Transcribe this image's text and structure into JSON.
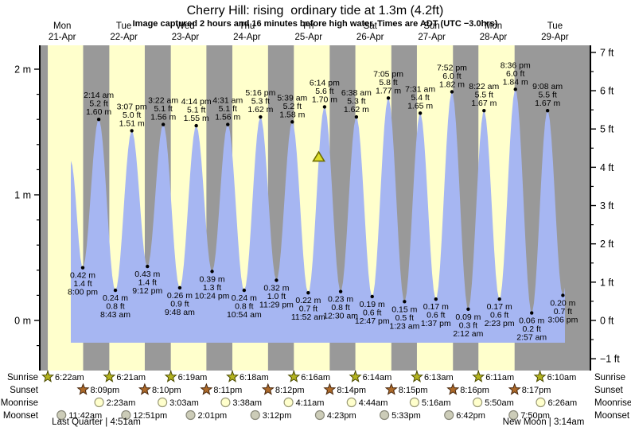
{
  "title": "Cherry Hill: rising  ordinary tide at 1.3m (4.2ft)",
  "subtitle": "Image captured 2 hours and 16 minutes before high water. Times are ADT (UTC −3.0hrs)",
  "colors": {
    "day_band": "#ffffcc",
    "night_band": "#999999",
    "tide_fill": "#a6b6f2",
    "day_label_red": "#e32222",
    "marker_fill": "#dede2a",
    "marker_stroke": "#6e6e00",
    "sunrise_star_fill": "#b3b31f",
    "sunrise_star_stroke": "#4c4c00",
    "sunset_star_fill": "#ad6a2a",
    "sunset_star_stroke": "#47250a",
    "moonrise_fill": "#ffffcc",
    "moonrise_stroke": "#999977",
    "moonset_fill": "#ccccb8",
    "moonset_stroke": "#88887a"
  },
  "chart_data": {
    "type": "area",
    "title": "Cherry Hill: rising  ordinary tide at 1.3m (4.2ft)",
    "subtitle": "Image captured 2 hours and 16 minutes before high water. Times are ADT (UTC −3.0hrs)",
    "days": [
      {
        "name": "Mon",
        "date": "21-Apr"
      },
      {
        "name": "Tue",
        "date": "22-Apr"
      },
      {
        "name": "Wed",
        "date": "23-Apr"
      },
      {
        "name": "Thu",
        "date": "24-Apr"
      },
      {
        "name": "Fri",
        "date": "25-Apr"
      },
      {
        "name": "Sat",
        "date": "26-Apr"
      },
      {
        "name": "Sun",
        "date": "27-Apr"
      },
      {
        "name": "Mon",
        "date": "28-Apr"
      },
      {
        "name": "Tue",
        "date": "29-Apr"
      }
    ],
    "y_left_ticks": [
      {
        "value": 0,
        "label": "0 m"
      },
      {
        "value": 1,
        "label": "1 m"
      },
      {
        "value": 2,
        "label": "2 m"
      }
    ],
    "y_right_ticks": [
      {
        "value": -1,
        "label": "−1 ft"
      },
      {
        "value": 0,
        "label": "0 ft"
      },
      {
        "value": 1,
        "label": "1 ft"
      },
      {
        "value": 2,
        "label": "2 ft"
      },
      {
        "value": 3,
        "label": "3 ft"
      },
      {
        "value": 4,
        "label": "4 ft"
      },
      {
        "value": 5,
        "label": "5 ft"
      },
      {
        "value": 6,
        "label": "6 ft"
      },
      {
        "value": 7,
        "label": "7 ft"
      }
    ],
    "tide_events": [
      {
        "day": 0,
        "type": "low",
        "time": "8:00 pm",
        "m": "0.42",
        "ft": "1.4"
      },
      {
        "day": 1,
        "type": "high",
        "time": "2:14 am",
        "m": "1.60",
        "ft": "5.2"
      },
      {
        "day": 1,
        "type": "low",
        "time": "8:43 am",
        "m": "0.24",
        "ft": "0.8"
      },
      {
        "day": 1,
        "type": "high",
        "time": "3:07 pm",
        "m": "1.51",
        "ft": "5.0"
      },
      {
        "day": 1,
        "type": "low",
        "time": "9:12 pm",
        "m": "0.43",
        "ft": "1.4"
      },
      {
        "day": 2,
        "type": "high",
        "time": "3:22 am",
        "m": "1.56",
        "ft": "5.1"
      },
      {
        "day": 2,
        "type": "low",
        "time": "9:48 am",
        "m": "0.26",
        "ft": "0.9"
      },
      {
        "day": 2,
        "type": "high",
        "time": "4:14 pm",
        "m": "1.55",
        "ft": "5.1"
      },
      {
        "day": 2,
        "type": "low",
        "time": "10:24 pm",
        "m": "0.39",
        "ft": "1.3"
      },
      {
        "day": 3,
        "type": "high",
        "time": "4:31 am",
        "m": "1.56",
        "ft": "5.1"
      },
      {
        "day": 3,
        "type": "low",
        "time": "10:54 am",
        "m": "0.24",
        "ft": "0.8"
      },
      {
        "day": 3,
        "type": "high",
        "time": "5:16 pm",
        "m": "1.62",
        "ft": "5.3"
      },
      {
        "day": 3,
        "type": "low",
        "time": "11:29 pm",
        "m": "0.32",
        "ft": "1.0"
      },
      {
        "day": 4,
        "type": "high",
        "time": "5:39 am",
        "m": "1.58",
        "ft": "5.2"
      },
      {
        "day": 4,
        "type": "low",
        "time": "11:52 am",
        "m": "0.22",
        "ft": "0.7"
      },
      {
        "day": 4,
        "type": "high",
        "time": "6:14 pm",
        "m": "1.70",
        "ft": "5.6"
      },
      {
        "day": 5,
        "type": "low",
        "time": "12:30 am",
        "m": "0.23",
        "ft": "0.8"
      },
      {
        "day": 5,
        "type": "high",
        "time": "6:38 am",
        "m": "1.62",
        "ft": "5.3"
      },
      {
        "day": 5,
        "type": "low",
        "time": "12:47 pm",
        "m": "0.19",
        "ft": "0.6"
      },
      {
        "day": 5,
        "type": "high",
        "time": "7:05 pm",
        "m": "1.77",
        "ft": "5.8"
      },
      {
        "day": 6,
        "type": "low",
        "time": "1:23 am",
        "m": "0.15",
        "ft": "0.5"
      },
      {
        "day": 6,
        "type": "high",
        "time": "7:31 am",
        "m": "1.65",
        "ft": "5.4"
      },
      {
        "day": 6,
        "type": "low",
        "time": "1:37 pm",
        "m": "0.17",
        "ft": "0.6"
      },
      {
        "day": 6,
        "type": "high",
        "time": "7:52 pm",
        "m": "1.82",
        "ft": "6.0"
      },
      {
        "day": 7,
        "type": "low",
        "time": "2:12 am",
        "m": "0.09",
        "ft": "0.3"
      },
      {
        "day": 7,
        "type": "high",
        "time": "8:22 am",
        "m": "1.67",
        "ft": "5.5"
      },
      {
        "day": 7,
        "type": "low",
        "time": "2:23 pm",
        "m": "0.17",
        "ft": "0.6"
      },
      {
        "day": 7,
        "type": "high",
        "time": "8:36 pm",
        "m": "1.84",
        "ft": "6.0"
      },
      {
        "day": 8,
        "type": "low",
        "time": "2:57 am",
        "m": "0.06",
        "ft": "0.2"
      },
      {
        "day": 8,
        "type": "high",
        "time": "9:08 am",
        "m": "1.67",
        "ft": "5.5"
      },
      {
        "day": 8,
        "type": "low",
        "time": "3:06 pm",
        "m": "0.20",
        "ft": "0.7"
      }
    ],
    "curve": {
      "start": {
        "t": 0.64,
        "h": 1.27
      },
      "end_clip_t": 8.663,
      "next_high": {
        "t": 8.9,
        "h": 1.84
      }
    },
    "marker": {
      "day_fraction": 4.665,
      "height_m": 1.3
    },
    "sun_moon": {
      "rows": [
        {
          "label": "Sunrise",
          "icon": "sunrise-star",
          "entries": [
            {
              "day": 0,
              "time": "6:22am"
            },
            {
              "day": 1,
              "time": "6:21am"
            },
            {
              "day": 2,
              "time": "6:19am"
            },
            {
              "day": 3,
              "time": "6:18am"
            },
            {
              "day": 4,
              "time": "6:16am"
            },
            {
              "day": 5,
              "time": "6:14am"
            },
            {
              "day": 6,
              "time": "6:13am"
            },
            {
              "day": 7,
              "time": "6:11am"
            },
            {
              "day": 8,
              "time": "6:10am"
            }
          ]
        },
        {
          "label": "Sunset",
          "icon": "sunset-star",
          "entries": [
            {
              "day": 0,
              "time": "8:09pm"
            },
            {
              "day": 1,
              "time": "8:10pm"
            },
            {
              "day": 2,
              "time": "8:11pm"
            },
            {
              "day": 3,
              "time": "8:12pm"
            },
            {
              "day": 4,
              "time": "8:14pm"
            },
            {
              "day": 5,
              "time": "8:15pm"
            },
            {
              "day": 6,
              "time": "8:16pm"
            },
            {
              "day": 7,
              "time": "8:17pm"
            }
          ]
        },
        {
          "label": "Moonrise",
          "icon": "moonrise-circle",
          "entries": [
            {
              "day": 1,
              "time": "2:23am"
            },
            {
              "day": 2,
              "time": "3:03am"
            },
            {
              "day": 3,
              "time": "3:38am"
            },
            {
              "day": 4,
              "time": "4:11am"
            },
            {
              "day": 5,
              "time": "4:44am"
            },
            {
              "day": 6,
              "time": "5:16am"
            },
            {
              "day": 7,
              "time": "5:50am"
            },
            {
              "day": 8,
              "time": "6:26am"
            }
          ]
        },
        {
          "label": "Moonset",
          "icon": "moonset-circle",
          "entries": [
            {
              "day": 0,
              "time": "11:42am"
            },
            {
              "day": 1,
              "time": "12:51pm"
            },
            {
              "day": 2,
              "time": "2:01pm"
            },
            {
              "day": 3,
              "time": "3:12pm"
            },
            {
              "day": 4,
              "time": "4:23pm"
            },
            {
              "day": 5,
              "time": "5:33pm"
            },
            {
              "day": 6,
              "time": "6:42pm"
            },
            {
              "day": 7,
              "time": "7:50pm"
            }
          ]
        }
      ],
      "moon_phases": [
        {
          "name": "Last Quarter",
          "time": "4:51am"
        },
        {
          "name": "New Moon",
          "time": "3:14am"
        }
      ]
    }
  }
}
